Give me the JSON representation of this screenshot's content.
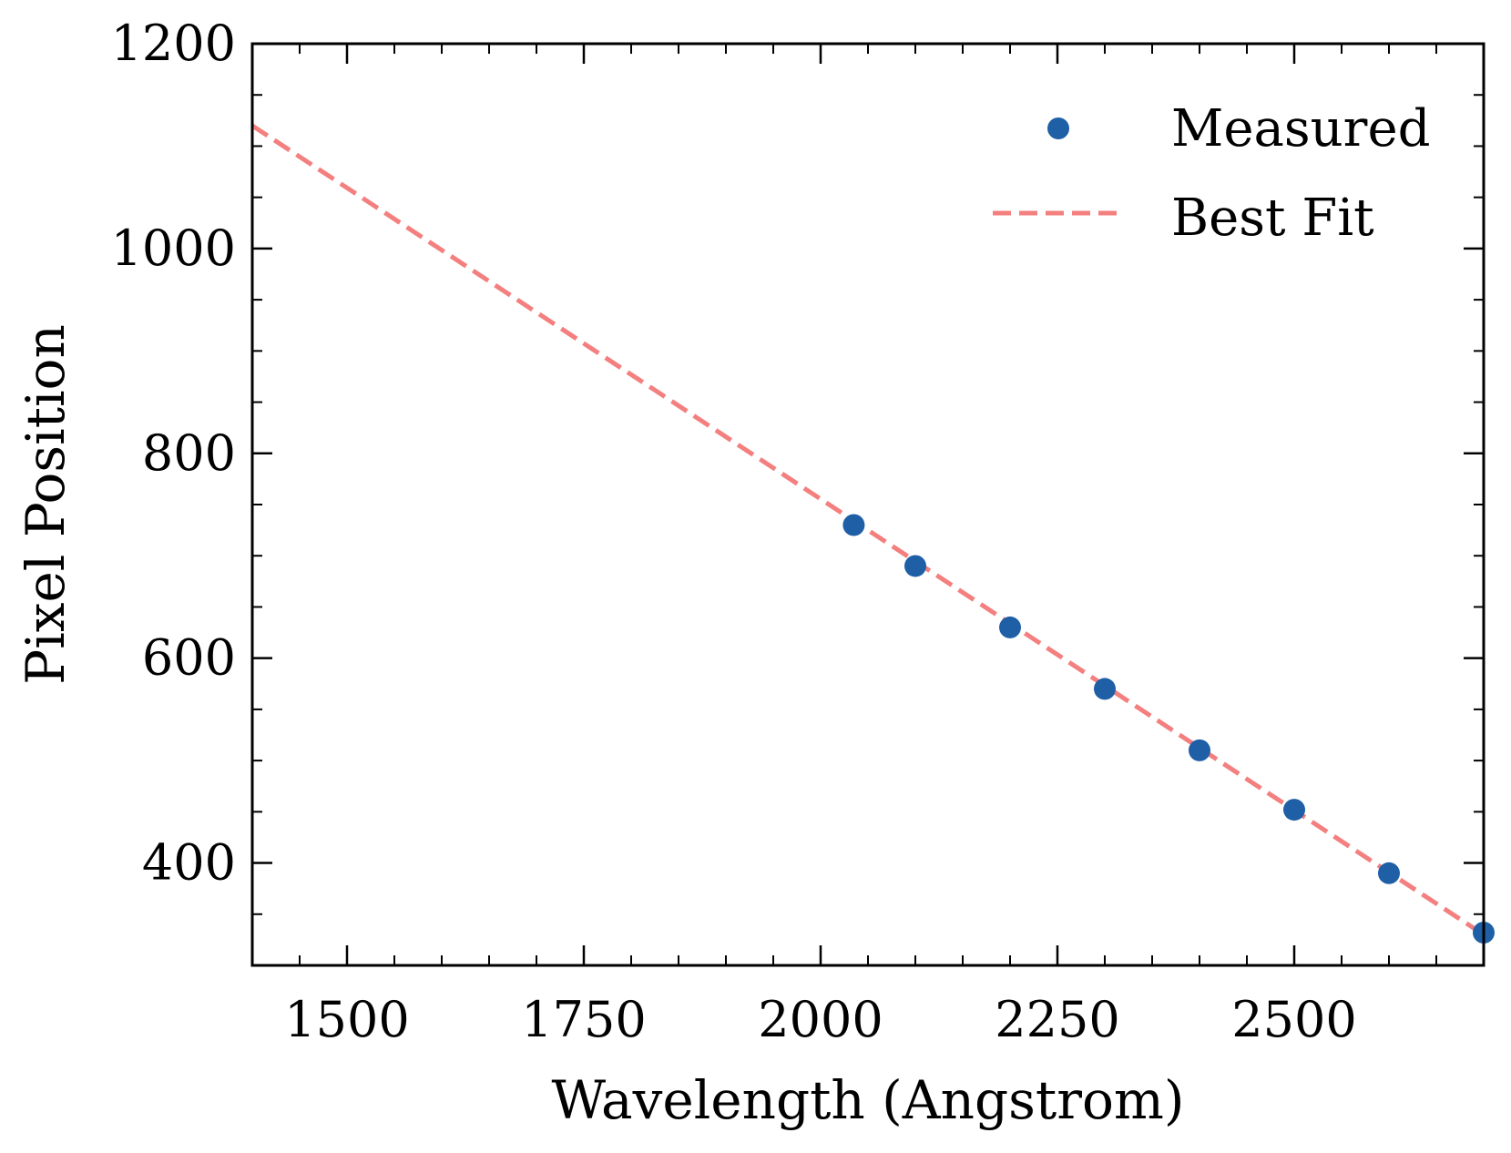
{
  "chart_data": {
    "type": "scatter",
    "title": "",
    "xlabel": "Wavelength (Angstrom)",
    "ylabel": "Pixel Position",
    "xlim": [
      1400,
      2700
    ],
    "ylim": [
      300,
      1200
    ],
    "x_ticks": [
      1500,
      1750,
      2000,
      2250,
      2500
    ],
    "x_tick_labels": [
      "1500",
      "1750",
      "2000",
      "2250",
      "2500"
    ],
    "x_minor_step": 50,
    "y_ticks": [
      400,
      600,
      800,
      1000,
      1200
    ],
    "y_tick_labels": [
      "400",
      "600",
      "800",
      "1000",
      "1200"
    ],
    "y_minor_step": 50,
    "grid": false,
    "legend_position": "top-right",
    "series": [
      {
        "name": "Measured",
        "kind": "scatter",
        "color": "#1f5fa6",
        "x": [
          2035,
          2100,
          2200,
          2300,
          2400,
          2500,
          2600,
          2700
        ],
        "y": [
          730,
          690,
          630,
          570,
          510,
          452,
          390,
          332
        ]
      },
      {
        "name": "Best Fit",
        "kind": "line",
        "style": "dashed",
        "color": "#f47f7f",
        "x": [
          1400,
          2700
        ],
        "y": [
          1120,
          330
        ]
      }
    ]
  }
}
